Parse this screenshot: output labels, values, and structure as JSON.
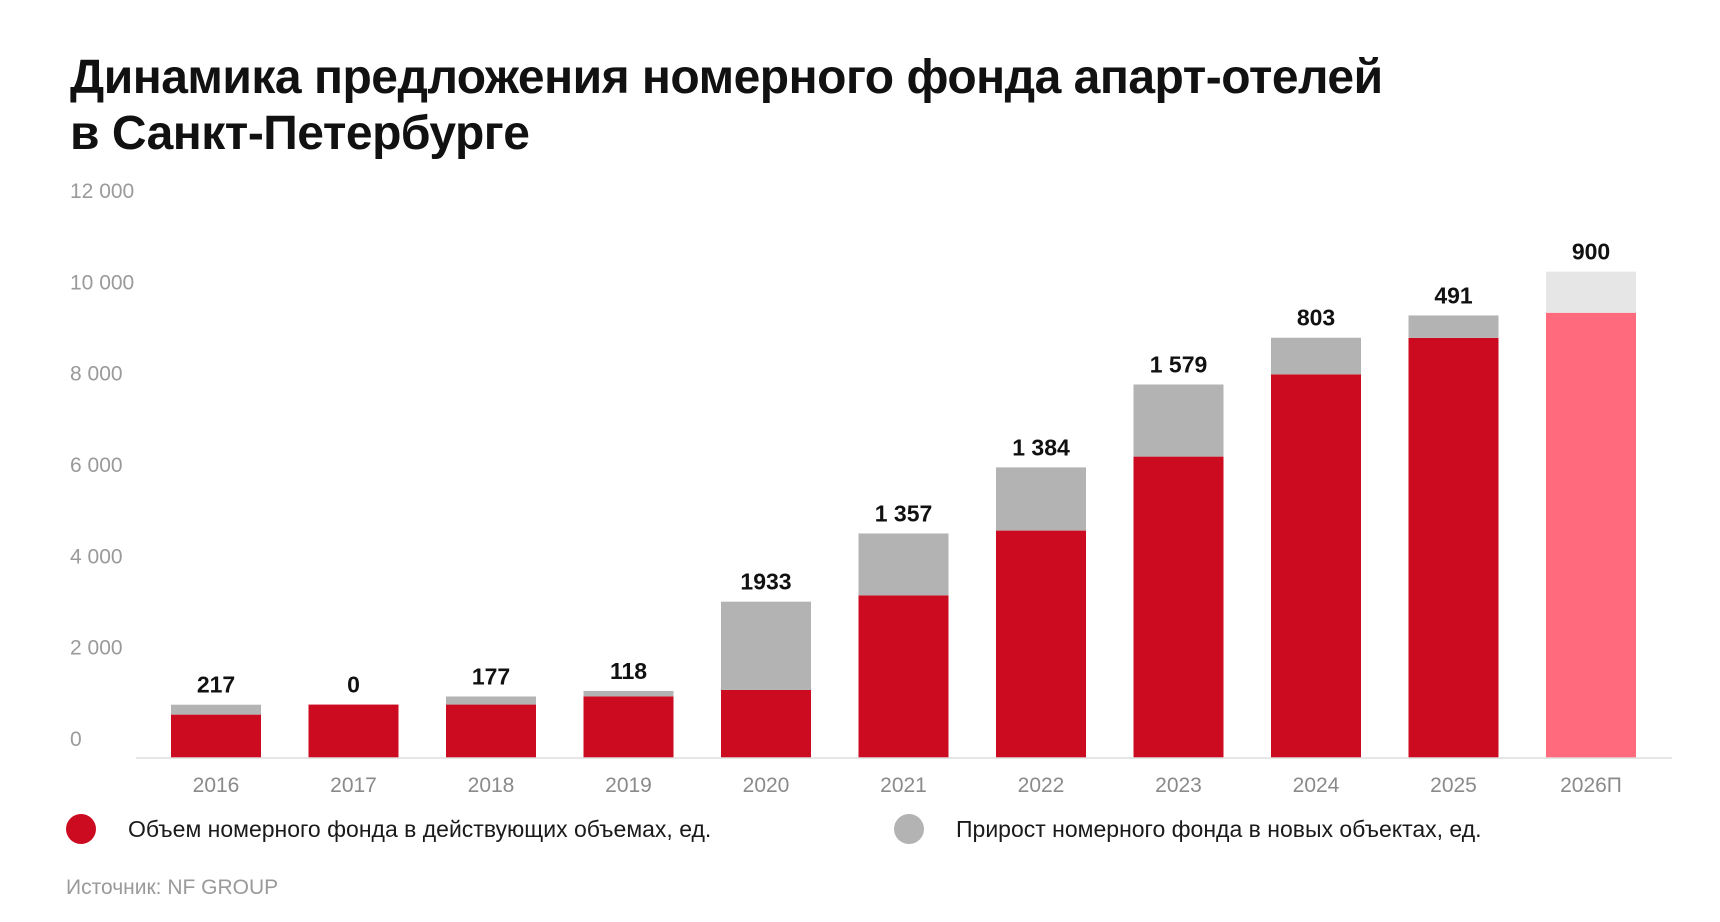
{
  "chart_data": {
    "type": "bar",
    "stacked": true,
    "title": "Динамика предложения номерного фонда апарт-отелей в Санкт-Петербурге",
    "title_lines": [
      "Динамика предложения номерного фонда апарт-отелей",
      "в Санкт-Петербурге"
    ],
    "categories": [
      "2016",
      "2017",
      "2018",
      "2019",
      "2020",
      "2021",
      "2022",
      "2023",
      "2024",
      "2025",
      "2026П"
    ],
    "series": [
      {
        "name": "Объем номерного фонда в действующих объемах, ед.",
        "color": "#cc0a20",
        "forecast_color": "#ff6a7c",
        "values": [
          950,
          1170,
          1170,
          1350,
          1490,
          3560,
          4980,
          6600,
          8400,
          9200,
          9750
        ]
      },
      {
        "name": "Прирост номерного фонда в новых объектах, ед.",
        "color": "#b3b3b3",
        "forecast_color": "#e6e6e6",
        "values": [
          217,
          0,
          177,
          118,
          1933,
          1357,
          1384,
          1579,
          803,
          491,
          900
        ]
      }
    ],
    "data_labels": [
      "217",
      "0",
      "177",
      "118",
      "1933",
      "1 357",
      "1 384",
      "1 579",
      "803",
      "491",
      "900"
    ],
    "forecast_index": 10,
    "ylim": [
      0,
      12000
    ],
    "yticks": [
      0,
      2000,
      4000,
      6000,
      8000,
      10000,
      12000
    ],
    "ytick_labels": [
      "0",
      "2 000",
      "4 000",
      "6 000",
      "8 000",
      "10 000",
      "12 000"
    ],
    "xlabel": "",
    "ylabel": "",
    "grid": false,
    "legend_position": "bottom"
  },
  "legend": {
    "item1": "Объем номерного фонда в действующих объемах, ед.",
    "item2": "Прирост номерного фонда в новых объектах, ед.",
    "color1": "#cc0a20",
    "color2": "#b3b3b3"
  },
  "source": "Источник: NF GROUP"
}
